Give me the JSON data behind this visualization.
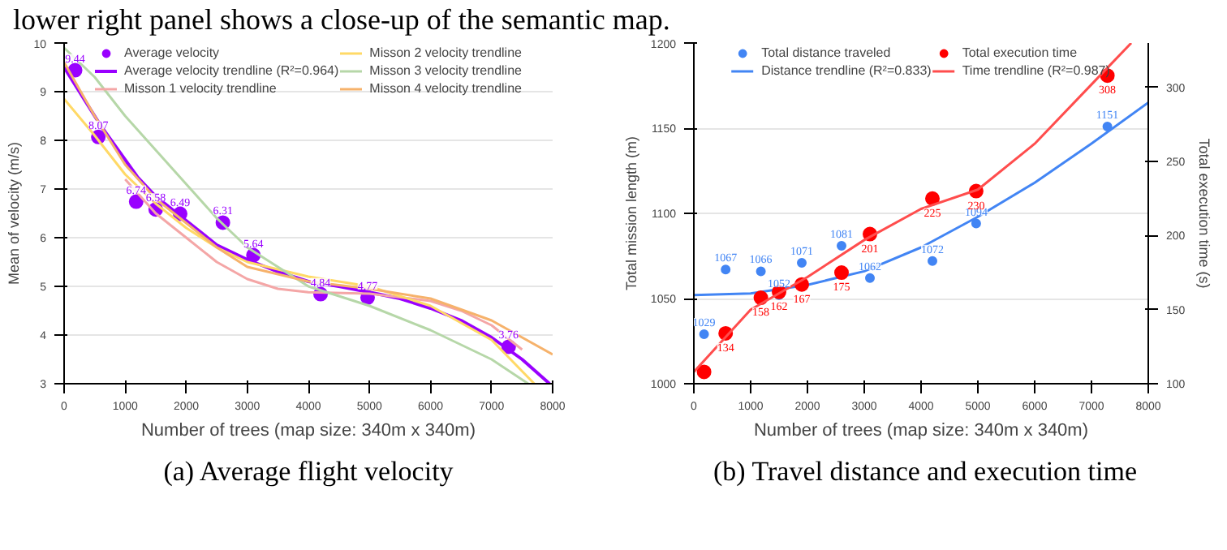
{
  "chart_data": [
    {
      "type": "scatter",
      "title": "(a) Average flight velocity",
      "annotations": [
        "lower right panel shows a close-up of the semantic map."
      ],
      "xlabel": "Number of trees (map size: 340m x 340m)",
      "ylabel": "Mean of velocity (m/s)",
      "xlim": [
        0,
        8000
      ],
      "xticks": [
        0,
        1000,
        2000,
        3000,
        4000,
        5000,
        6000,
        7000,
        8000
      ],
      "ylim": [
        3,
        10
      ],
      "yticks": [
        3,
        4,
        5,
        6,
        7,
        8,
        9,
        10
      ],
      "grid": "y",
      "legend": "top",
      "line_style": "solid",
      "series": [
        {
          "name": "Average velocity",
          "marker": "circle",
          "color": "#9900ff",
          "x": [
            180,
            560,
            1180,
            1500,
            1900,
            2600,
            3100,
            4200,
            4970,
            7280
          ],
          "values": [
            9.44,
            8.07,
            6.74,
            6.58,
            6.49,
            6.31,
            5.64,
            4.84,
            4.77,
            3.76
          ],
          "value_labels": [
            "9.44",
            "8.07",
            "6.74",
            "6.58",
            "6.49",
            "6.31",
            "5.64",
            "4.84",
            "4.77",
            "3.76"
          ]
        },
        {
          "name": "Average velocity trendline (R²=0.964)",
          "type": "line",
          "color": "#9900ff",
          "x": [
            0,
            600,
            1200,
            1500,
            2000,
            2500,
            3000,
            3500,
            4000,
            4500,
            5000,
            5500,
            6000,
            6500,
            7000,
            7500,
            7950
          ],
          "values": [
            9.5,
            8.3,
            7.25,
            6.85,
            6.35,
            5.85,
            5.55,
            5.3,
            5.1,
            5.0,
            4.88,
            4.75,
            4.55,
            4.3,
            3.95,
            3.5,
            3.0
          ]
        },
        {
          "name": "Misson 1 velocity trendline",
          "type": "line",
          "color": "#f4a6a6",
          "x": [
            1000,
            1500,
            2000,
            2500,
            3000,
            3500,
            4000,
            5000,
            6000,
            6500,
            7000,
            7500
          ],
          "values": [
            7.2,
            6.5,
            6.0,
            5.5,
            5.15,
            4.95,
            4.88,
            4.85,
            4.7,
            4.5,
            4.2,
            3.7
          ]
        },
        {
          "name": "Misson 2 velocity trendline",
          "type": "line",
          "color": "#ffd966",
          "x": [
            0,
            500,
            1000,
            1500,
            2000,
            2500,
            3000,
            4000,
            5000,
            6000,
            7000,
            7700
          ],
          "values": [
            8.85,
            8.1,
            7.3,
            6.7,
            6.2,
            5.8,
            5.5,
            5.2,
            5.0,
            4.6,
            3.9,
            3.0
          ]
        },
        {
          "name": "Misson 3 velocity trendline",
          "type": "line",
          "color": "#b6d7a8",
          "x": [
            0,
            500,
            1000,
            1500,
            2000,
            2500,
            3000,
            4000,
            5000,
            6000,
            7000,
            7600
          ],
          "values": [
            9.9,
            9.3,
            8.5,
            7.8,
            7.1,
            6.4,
            5.8,
            5.0,
            4.6,
            4.1,
            3.5,
            3.0
          ]
        },
        {
          "name": "Misson 4 velocity trendline",
          "type": "line",
          "color": "#f6b26b",
          "x": [
            0,
            500,
            1000,
            1500,
            2000,
            2500,
            3000,
            4000,
            5000,
            6000,
            7000,
            8000
          ],
          "values": [
            9.6,
            8.5,
            7.5,
            6.8,
            6.3,
            5.8,
            5.4,
            5.1,
            4.95,
            4.75,
            4.3,
            3.6
          ]
        }
      ]
    },
    {
      "type": "scatter",
      "title": "(b) Travel distance and execution time",
      "xlabel": "Number of trees (map size: 340m x 340m)",
      "ylabel": "Total mission length (m)",
      "y2label": "Total execution time (s)",
      "xlim": [
        0,
        8000
      ],
      "xticks": [
        0,
        1000,
        2000,
        3000,
        4000,
        5000,
        6000,
        7000,
        8000
      ],
      "ylim": [
        1000,
        1200
      ],
      "yticks": [
        1000,
        1050,
        1100,
        1150,
        1200
      ],
      "y2lim": [
        100,
        330
      ],
      "y2ticks": [
        100,
        150,
        200,
        250,
        300
      ],
      "grid": "y",
      "legend": "top",
      "line_style": "solid",
      "series": [
        {
          "name": "Total distance traveled",
          "marker": "circle",
          "color": "#4285f4",
          "x": [
            180,
            560,
            1180,
            1500,
            1900,
            2600,
            3100,
            4200,
            4970,
            7280
          ],
          "values": [
            1029,
            1067,
            1066,
            1052,
            1071,
            1081,
            1062,
            1072,
            1094,
            1151
          ],
          "value_labels": [
            "1029",
            "1067",
            "1066",
            "1052",
            "1071",
            "1081",
            "1062",
            "1072",
            "1094",
            "1151"
          ]
        },
        {
          "name": "Distance trendline (R²=0.833)",
          "type": "line",
          "color": "#4285f4",
          "x": [
            0,
            1000,
            2000,
            3000,
            4000,
            5000,
            6000,
            7000,
            8000
          ],
          "values": [
            1052,
            1053,
            1058,
            1066,
            1080,
            1098,
            1118,
            1141,
            1165
          ]
        },
        {
          "name": "Total execution time",
          "marker": "circle",
          "axis": "y2",
          "color": "#ff0000",
          "x": [
            180,
            560,
            1180,
            1500,
            1900,
            2600,
            3100,
            4200,
            4970,
            7280
          ],
          "values": [
            108,
            134,
            158,
            162,
            167,
            175,
            201,
            225,
            230,
            308
          ],
          "value_labels": [
            null,
            "134",
            "158",
            "162",
            "167",
            "175",
            "201",
            "225",
            "230",
            "308"
          ]
        },
        {
          "name": "Time trendline (R²=0.987)",
          "type": "line",
          "axis": "y2",
          "color": "#ff4d4d",
          "x": [
            0,
            1000,
            2000,
            3000,
            4000,
            5000,
            6000,
            7000,
            7700
          ],
          "values": [
            108,
            150,
            172,
            197,
            218,
            231,
            262,
            302,
            330
          ]
        }
      ]
    }
  ]
}
